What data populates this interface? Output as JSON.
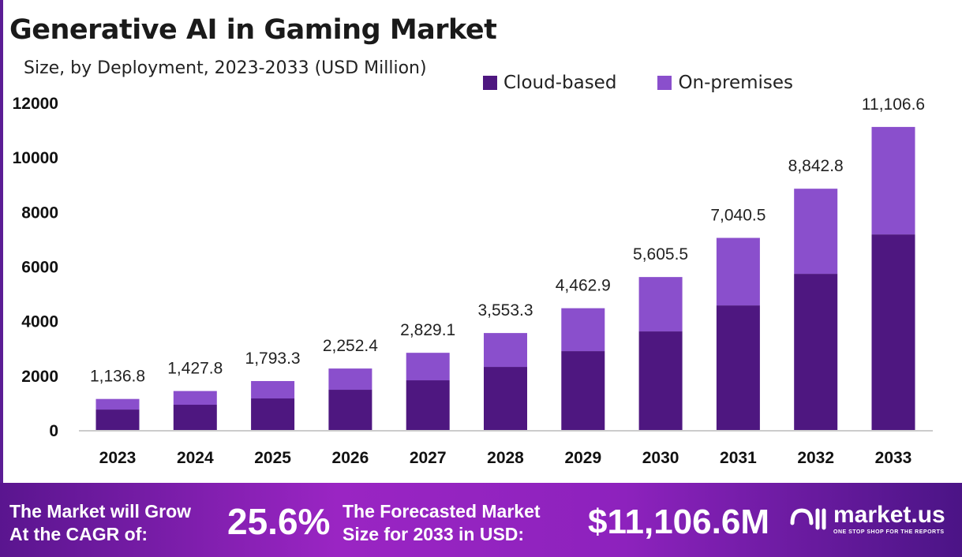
{
  "chart_data": {
    "type": "bar",
    "stacked": true,
    "title": "Generative AI in Gaming Market",
    "subtitle": "Size, by Deployment, 2023-2033 (USD Million)",
    "categories": [
      "2023",
      "2024",
      "2025",
      "2026",
      "2027",
      "2028",
      "2029",
      "2030",
      "2031",
      "2032",
      "2033"
    ],
    "series": [
      {
        "name": "Cloud-based",
        "color": "#4e1780",
        "values": [
          750,
          925,
          1156,
          1474,
          1821,
          2312,
          2890,
          3613,
          4566,
          5723,
          7168
        ]
      },
      {
        "name": "On-premises",
        "color": "#8a4fcc",
        "values": [
          386.8,
          502.8,
          637.3,
          778.4,
          1008.1,
          1241.3,
          1572.9,
          1992.5,
          2474.5,
          3119.8,
          3938.6
        ]
      }
    ],
    "totals_labels": [
      "1,136.8",
      "1,427.8",
      "1,793.3",
      "2,252.4",
      "2,829.1",
      "3,553.3",
      "4,462.9",
      "5,605.5",
      "7,040.5",
      "8,842.8",
      "11,106.6"
    ],
    "totals": [
      1136.8,
      1427.8,
      1793.3,
      2252.4,
      2829.1,
      3553.3,
      4462.9,
      5605.5,
      7040.5,
      8842.8,
      11106.6
    ],
    "ylim": [
      0,
      12000
    ],
    "yticks": [
      "0",
      "2000",
      "4000",
      "6000",
      "8000",
      "10000",
      "12000"
    ],
    "grid": false,
    "legend": "top-right"
  },
  "footer": {
    "cagr_text_1": "The Market will Grow",
    "cagr_text_2": "At the CAGR of:",
    "cagr_value": "25.6%",
    "forecast_text_1": "The Forecasted Market",
    "forecast_text_2": "Size for 2033 in USD:",
    "forecast_value": "$11,106.6M",
    "logo_name": "market.us",
    "logo_tagline": "ONE STOP SHOP FOR THE REPORTS"
  }
}
